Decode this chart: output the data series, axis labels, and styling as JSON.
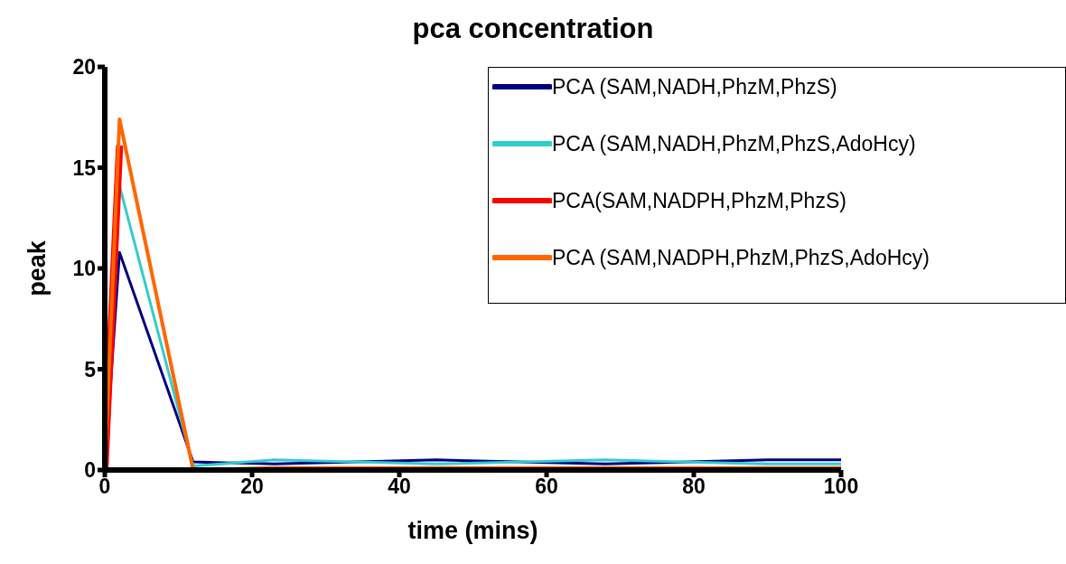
{
  "chart_data": {
    "type": "line",
    "title": "pca concentration",
    "xlabel": "time (mins)",
    "ylabel": "peak",
    "x": [
      0,
      2,
      12,
      23,
      45,
      68,
      90,
      100
    ],
    "series": [
      {
        "name": "PCA (SAM,NADH,PhzM,PhzS)",
        "color": "#000080",
        "values": [
          0,
          10.8,
          0.4,
          0.3,
          0.5,
          0.3,
          0.5,
          0.5
        ]
      },
      {
        "name": "PCA (SAM,NADH,PhzM,PhzS,AdoHcy)",
        "color": "#33cccc",
        "values": [
          0,
          14.1,
          0.2,
          0.5,
          0.3,
          0.5,
          0.3,
          0.3
        ]
      },
      {
        "name": "PCA(SAM,NADPH,PhzM,PhzS)",
        "color": "#ff0000",
        "values": [
          0,
          16.1,
          null,
          null,
          null,
          null,
          null,
          null
        ]
      },
      {
        "name": "PCA (SAM,NADPH,PhzM,PhzS,AdoHcy)",
        "color": "#ff6600",
        "values": [
          0,
          17.4,
          0,
          0.1,
          0.1,
          0.1,
          0.1,
          0.1
        ]
      }
    ],
    "xlim": [
      0,
      100
    ],
    "xticks": [
      0,
      20,
      40,
      60,
      80,
      100
    ],
    "ylim": [
      0,
      20
    ],
    "yticks": [
      0,
      5,
      10,
      15,
      20
    ],
    "grid": false,
    "legend": "top right",
    "marker": "none",
    "line_style": "solid"
  }
}
